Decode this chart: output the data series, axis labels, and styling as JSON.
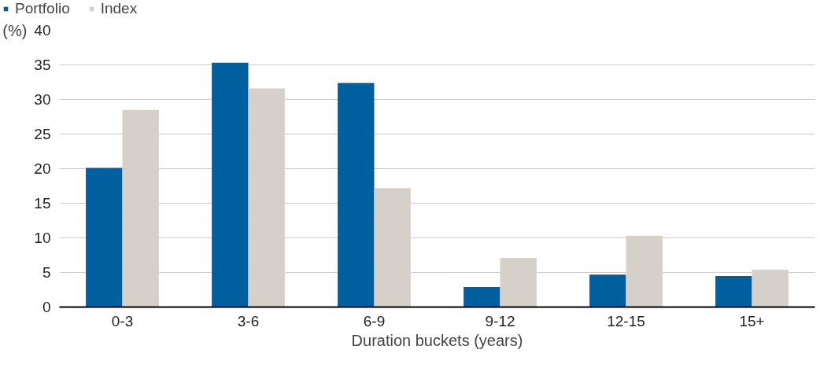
{
  "chart_data": {
    "type": "bar",
    "categories": [
      "0-3",
      "3-6",
      "6-9",
      "9-12",
      "12-15",
      "15+"
    ],
    "series": [
      {
        "name": "Portfolio",
        "color": "#005f9e",
        "values": [
          20.1,
          35.3,
          32.4,
          2.9,
          4.7,
          4.5
        ]
      },
      {
        "name": "Index",
        "color": "#d5d0ca",
        "values": [
          28.5,
          31.6,
          17.2,
          7.1,
          10.3,
          5.4
        ]
      }
    ],
    "ylabel": "(%)",
    "xlabel": "Duration buckets (years)",
    "ylim": [
      0,
      40
    ],
    "yticks": [
      0,
      5,
      10,
      15,
      20,
      25,
      30,
      35,
      40
    ],
    "grid": "y",
    "legend": "top left"
  }
}
